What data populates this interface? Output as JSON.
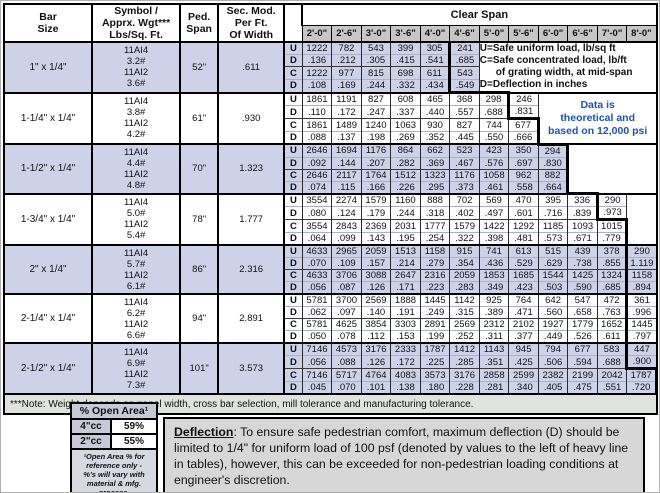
{
  "table": {
    "headers": {
      "bar_size": "Bar\nSize",
      "symbol": "Symbol /\nApprx. Wgt***\nLbs/Sq. Ft.",
      "ped_span": "Ped.\nSpan",
      "sec_mod": "Sec. Mod.\nPer Ft.\nOf Width",
      "clear_span": "Clear Span",
      "spans": [
        "2'-0\"",
        "2'-6\"",
        "3'-0\"",
        "3'-6\"",
        "4'-0\"",
        "4'-6\"",
        "5'-0\"",
        "5'-6\"",
        "6'-0\"",
        "6'-6\"",
        "7'-0\"",
        "8'-0\""
      ]
    },
    "ucd_labels": [
      "U",
      "D",
      "C",
      "D"
    ],
    "legend_lines": [
      "U=Safe uniform load, lb/sq ft",
      "C=Safe concentrated load, lb/ft",
      "of grating width, at mid-span",
      "D=Deflection in inches"
    ],
    "blue_note_lines": [
      "Data is",
      "theoretical and",
      "based on 12,000 psi"
    ],
    "blue_note_color": "#1b50c8",
    "shaded_row_color": "#cdd2e9",
    "rows": [
      {
        "bar_size": "1\" x 1/4\"",
        "symbol_lines": [
          "11AI4",
          "3.2#",
          "11AI2",
          "3.6#"
        ],
        "ped_span": "52\"",
        "sec_mod": ".611",
        "shaded": true,
        "u": [
          "1222",
          "782",
          "543",
          "399",
          "305",
          "241"
        ],
        "d_uniform": [
          ".136",
          ".212",
          ".305",
          ".415",
          ".541",
          ".685"
        ],
        "c": [
          "1222",
          "977",
          "815",
          "698",
          "611",
          "543"
        ],
        "d_concentrated": [
          ".108",
          ".169",
          ".244",
          ".332",
          ".434",
          ".549"
        ],
        "heavy_ud": 4,
        "heavy_cd": 4,
        "filler": {
          "type": "legend",
          "colspan": 6
        }
      },
      {
        "bar_size": "1-1/4\" x 1/4\"",
        "symbol_lines": [
          "11AI4",
          "3.8#",
          "11AI2",
          "4.2#"
        ],
        "ped_span": "61\"",
        "sec_mod": ".930",
        "shaded": false,
        "u": [
          "1861",
          "1191",
          "827",
          "608",
          "465",
          "368",
          "298",
          "246"
        ],
        "d_uniform": [
          ".110",
          ".172",
          ".247",
          ".337",
          ".440",
          ".557",
          ".688",
          ".831"
        ],
        "c": [
          "1861",
          "1489",
          "1240",
          "1063",
          "930",
          "827",
          "744",
          "677"
        ],
        "d_concentrated": [
          ".088",
          ".137",
          ".198",
          ".269",
          ".352",
          ".445",
          ".550",
          ".666"
        ],
        "heavy_ud": 6,
        "heavy_cd": 7,
        "filler": {
          "type": "blue",
          "colspan": 4
        }
      },
      {
        "bar_size": "1-1/2\" x 1/4\"",
        "symbol_lines": [
          "11AI4",
          "4.4#",
          "11AI2",
          "4.8#"
        ],
        "ped_span": "70\"",
        "sec_mod": "1.323",
        "shaded": true,
        "u": [
          "2646",
          "1694",
          "1176",
          "864",
          "662",
          "523",
          "423",
          "350",
          "294"
        ],
        "d_uniform": [
          ".092",
          ".144",
          ".207",
          ".282",
          ".369",
          ".467",
          ".576",
          ".697",
          ".830"
        ],
        "c": [
          "2646",
          "2117",
          "1764",
          "1512",
          "1323",
          "1176",
          "1058",
          "962",
          "882"
        ],
        "d_concentrated": [
          ".074",
          ".115",
          ".166",
          ".226",
          ".295",
          ".373",
          ".461",
          ".558",
          ".664"
        ],
        "heavy_ud": 8,
        "heavy_cd": 8,
        "filler": {
          "type": "empty",
          "colspan": 3
        }
      },
      {
        "bar_size": "1-3/4\" x 1/4\"",
        "symbol_lines": [
          "11AI4",
          "5.0#",
          "11AI2",
          "5.4#"
        ],
        "ped_span": "78\"",
        "sec_mod": "1.777",
        "shaded": false,
        "u": [
          "3554",
          "2274",
          "1579",
          "1160",
          "888",
          "702",
          "569",
          "470",
          "395",
          "336",
          "290"
        ],
        "d_uniform": [
          ".080",
          ".124",
          ".179",
          ".244",
          ".318",
          ".402",
          ".497",
          ".601",
          ".716",
          ".839",
          ".973"
        ],
        "c": [
          "3554",
          "2843",
          "2369",
          "2031",
          "1777",
          "1579",
          "1422",
          "1292",
          "1185",
          "1093",
          "1015"
        ],
        "d_concentrated": [
          ".064",
          ".099",
          ".143",
          ".195",
          ".254",
          ".322",
          ".398",
          ".481",
          ".573",
          ".671",
          ".779"
        ],
        "heavy_ud": 9,
        "heavy_cd": 10,
        "filler": {
          "type": "empty",
          "colspan": 1
        }
      },
      {
        "bar_size": "2\" x 1/4\"",
        "symbol_lines": [
          "11AI4",
          "5.7#",
          "11AI2",
          "6.1#"
        ],
        "ped_span": "86\"",
        "sec_mod": "2.316",
        "shaded": true,
        "u": [
          "4633",
          "2965",
          "2059",
          "1513",
          "1158",
          "915",
          "741",
          "613",
          "515",
          "439",
          "378",
          "290"
        ],
        "d_uniform": [
          ".070",
          ".109",
          ".157",
          ".214",
          ".279",
          ".354",
          ".436",
          ".529",
          ".629",
          ".738",
          ".855",
          "1.119"
        ],
        "c": [
          "4633",
          "3706",
          "3088",
          "2647",
          "2316",
          "2059",
          "1853",
          "1685",
          "1544",
          "1425",
          "1324",
          "1158"
        ],
        "d_concentrated": [
          ".056",
          ".087",
          ".126",
          ".171",
          ".223",
          ".283",
          ".349",
          ".423",
          ".503",
          ".590",
          ".685",
          ".894"
        ],
        "heavy_ud": 10,
        "heavy_cd": 10
      },
      {
        "bar_size": "2-1/4\" x 1/4\"",
        "symbol_lines": [
          "11AI4",
          "6.2#",
          "11AI2",
          "6.6#"
        ],
        "ped_span": "94\"",
        "sec_mod": "2.891",
        "shaded": false,
        "u": [
          "5781",
          "3700",
          "2569",
          "1888",
          "1445",
          "1142",
          "925",
          "764",
          "642",
          "547",
          "472",
          "361"
        ],
        "d_uniform": [
          ".062",
          ".097",
          ".140",
          ".191",
          ".249",
          ".315",
          ".389",
          ".471",
          ".560",
          ".658",
          ".763",
          ".996"
        ],
        "c": [
          "5781",
          "4625",
          "3854",
          "3303",
          "2891",
          "2569",
          "2312",
          "2102",
          "1927",
          "1779",
          "1652",
          "1445"
        ],
        "d_concentrated": [
          ".050",
          ".078",
          ".112",
          ".153",
          ".199",
          ".252",
          ".311",
          ".377",
          ".449",
          ".526",
          ".611",
          ".797"
        ],
        "heavy_ud": 10,
        "heavy_cd": 10
      },
      {
        "bar_size": "2-1/2\" x 1/4\"",
        "symbol_lines": [
          "11AI4",
          "6.9#",
          "11AI2",
          "7.3#"
        ],
        "ped_span": "101\"",
        "sec_mod": "3.573",
        "shaded": true,
        "u": [
          "7146",
          "4573",
          "3176",
          "2333",
          "1787",
          "1412",
          "1143",
          "945",
          "794",
          "677",
          "583",
          "447"
        ],
        "d_uniform": [
          ".056",
          ".088",
          ".126",
          ".172",
          ".225",
          ".285",
          ".351",
          ".425",
          ".506",
          ".594",
          ".688",
          ".900"
        ],
        "c": [
          "7146",
          "5717",
          "4764",
          "4083",
          "3573",
          "3176",
          "2858",
          "2599",
          "2382",
          "2199",
          "2042",
          "1787"
        ],
        "d_concentrated": [
          ".045",
          ".070",
          ".101",
          ".138",
          ".180",
          ".228",
          ".281",
          ".340",
          ".405",
          ".475",
          ".551",
          ".720"
        ],
        "heavy_ud": 10,
        "heavy_cd": 11
      }
    ],
    "footnote": "***Note: Weight depends on panel width, cross bar selection, mill tolerance and manufacturing tolerance."
  },
  "open_area": {
    "title": "% Open Area¹",
    "rows": [
      {
        "label": "4\"cc",
        "value": "59%"
      },
      {
        "label": "2\"cc",
        "value": "55%"
      }
    ],
    "footnote": "¹Open Area % for\nreference only -\n%'s will vary with\nmaterial & mfg.\nprocess."
  },
  "deflection_note": {
    "heading": "Deflection",
    "body": ":  To ensure safe pedestrian comfort, maximum deflection (D) should be limited to 1/4\" for uniform load of 100 psf (denoted by values to the left of heavy line in tables), however, this can be exceeded for non-pedestrian loading conditions at engineer's discretion."
  }
}
